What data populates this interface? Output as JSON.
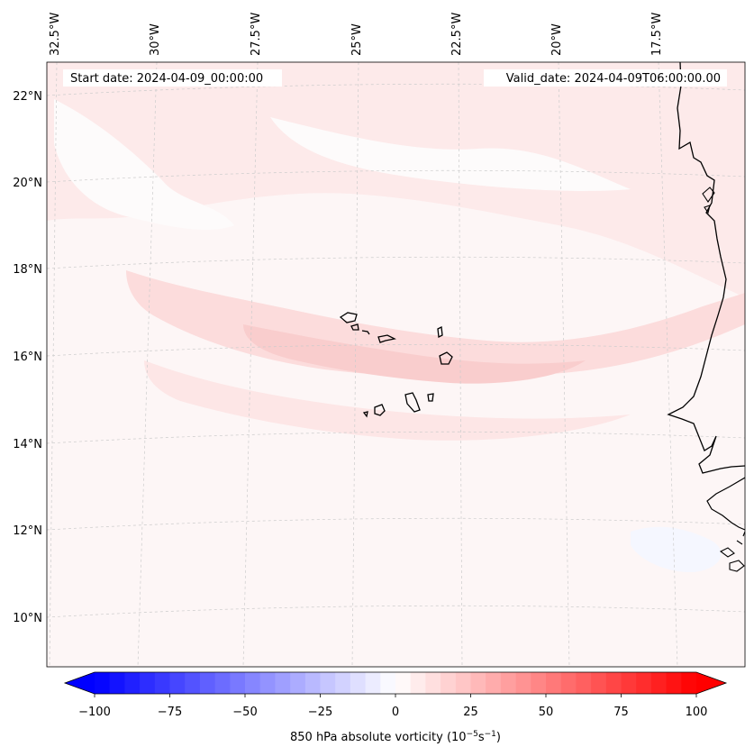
{
  "map": {
    "start_date_label": "Start date: 2024-04-09_00:00:00",
    "valid_date_label": "Valid_date: 2024-04-09T06:00:00.00",
    "lon_labels": [
      "32.5°W",
      "30°W",
      "27.5°W",
      "25°W",
      "22.5°W",
      "20°W",
      "17.5°W"
    ],
    "lat_labels": [
      "22°N",
      "20°N",
      "18°N",
      "16°N",
      "14°N",
      "12°N",
      "10°N"
    ],
    "field": "850 hPa absolute vorticity",
    "region": "Cape Verde Islands and West African coast"
  },
  "colorbar": {
    "label_main": "850 hPa absolute vorticity (10",
    "label_exp1": "−5",
    "label_mid": "s",
    "label_exp2": "−1",
    "label_end": ")",
    "ticks": [
      -100,
      -75,
      -50,
      -25,
      0,
      25,
      50,
      75,
      100
    ],
    "tick_labels": [
      "−100",
      "−75",
      "−50",
      "−25",
      "0",
      "25",
      "50",
      "75",
      "100"
    ],
    "min": -100,
    "max": 100,
    "levels": 40
  },
  "colors": {
    "negative_end": "#0000ff",
    "zero": "#ffffff",
    "positive_end": "#ff0000",
    "coastline": "#000000",
    "gridline": "#cccccc"
  }
}
